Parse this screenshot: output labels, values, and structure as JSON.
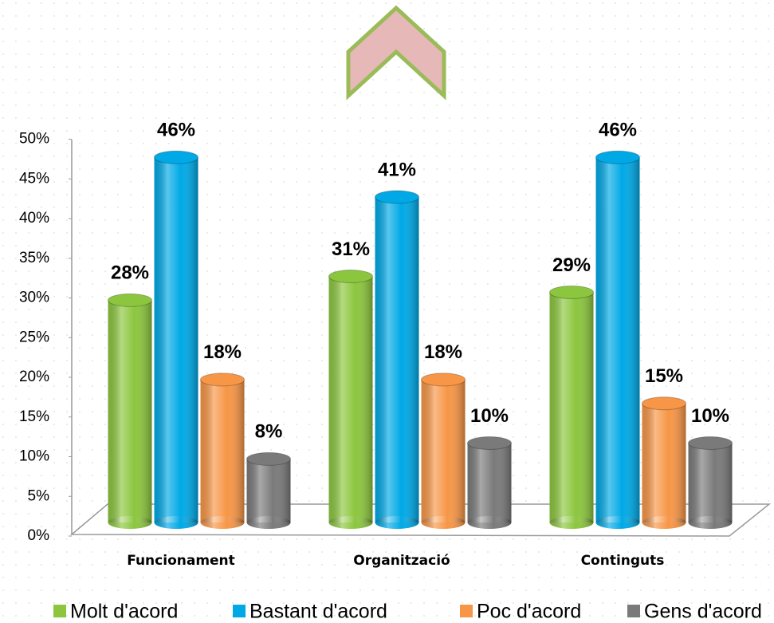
{
  "chart_data": {
    "type": "bar",
    "categories": [
      "Funcionament",
      "Organització",
      "Continguts"
    ],
    "series": [
      {
        "name": "Molt d'acord",
        "color": "#8cc63e",
        "values": [
          28,
          31,
          29
        ],
        "value_labels": [
          "28%",
          "31%",
          "29%"
        ]
      },
      {
        "name": "Bastant d'acord",
        "color": "#00a9e6",
        "values": [
          46,
          41,
          46
        ],
        "value_labels": [
          "46%",
          "41%",
          "46%"
        ]
      },
      {
        "name": "Poc d'acord",
        "color": "#f79646",
        "values": [
          18,
          18,
          15
        ],
        "value_labels": [
          "18%",
          "18%",
          "15%"
        ]
      },
      {
        "name": "Gens d'acord",
        "color": "#7a7a7a",
        "values": [
          8,
          10,
          10
        ],
        "value_labels": [
          "8%",
          "10%",
          "10%"
        ]
      }
    ],
    "ylim": [
      0,
      50
    ],
    "yticks": [
      {
        "value": 0,
        "label": "0%"
      },
      {
        "value": 5,
        "label": "5%"
      },
      {
        "value": 10,
        "label": "10%"
      },
      {
        "value": 15,
        "label": "15%"
      },
      {
        "value": 20,
        "label": "20%"
      },
      {
        "value": 25,
        "label": "25%"
      },
      {
        "value": 30,
        "label": "30%"
      },
      {
        "value": 35,
        "label": "35%"
      },
      {
        "value": 40,
        "label": "40%"
      },
      {
        "value": 45,
        "label": "45%"
      },
      {
        "value": 50,
        "label": "50%"
      }
    ],
    "legend": "bottom"
  }
}
